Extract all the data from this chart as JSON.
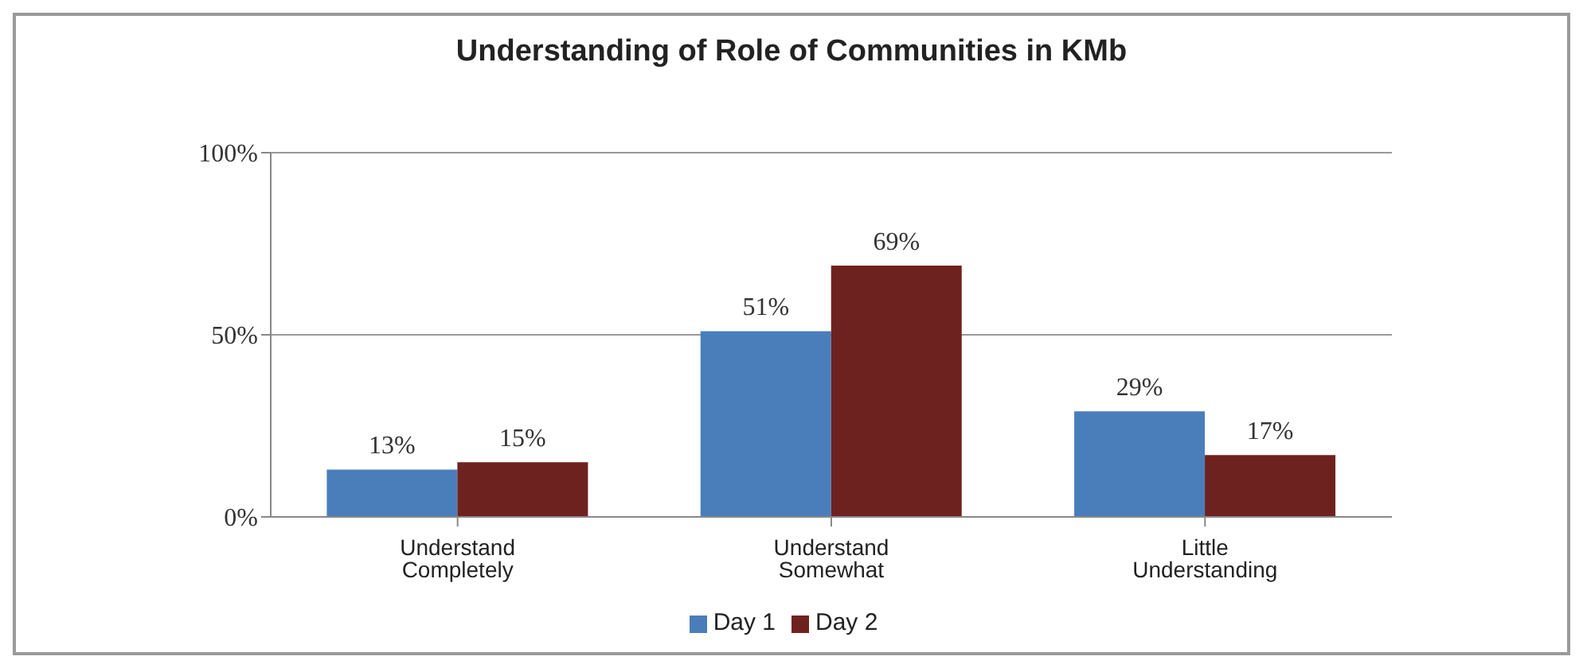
{
  "chart_data": {
    "type": "bar",
    "title": "Understanding of Role of Communities in KMb",
    "categories": [
      "Understand Completely",
      "Understand Somewhat",
      "Little Understanding"
    ],
    "series": [
      {
        "name": "Day 1",
        "color": "#4a7ebb",
        "values": [
          13,
          51,
          29
        ],
        "value_labels": [
          "13%",
          "51%",
          "29%"
        ]
      },
      {
        "name": "Day 2",
        "color": "#6e2220",
        "values": [
          15,
          69,
          17
        ],
        "value_labels": [
          "15%",
          "69%",
          "17%"
        ]
      }
    ],
    "ylim": [
      0,
      100
    ],
    "yticks": [
      {
        "value": 0,
        "label": "0%"
      },
      {
        "value": 50,
        "label": "50%"
      },
      {
        "value": 100,
        "label": "100%"
      }
    ],
    "grid": "y",
    "legend": "bottom"
  }
}
